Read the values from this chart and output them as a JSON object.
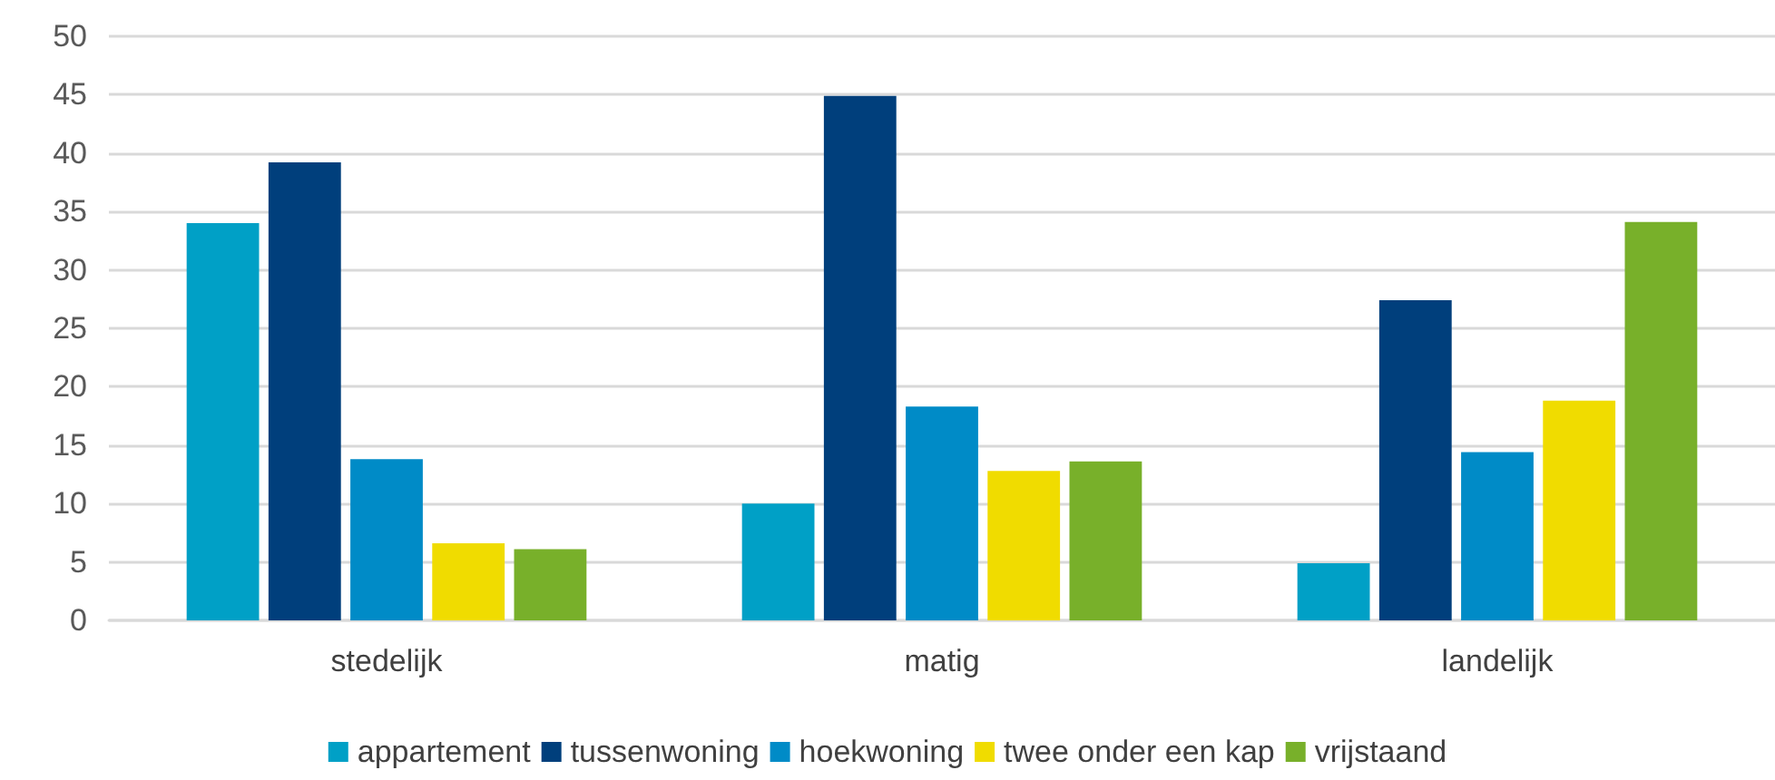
{
  "chart_data": {
    "type": "bar",
    "categories": [
      "stedelijk",
      "matig",
      "landelijk"
    ],
    "series": [
      {
        "name": "appartement",
        "color": "#00a0c6",
        "values": [
          34.0,
          10.0,
          4.9
        ]
      },
      {
        "name": "tussenwoning",
        "color": "#003f7c",
        "values": [
          39.2,
          44.9,
          27.4
        ]
      },
      {
        "name": "hoekwoning",
        "color": "#008bc7",
        "values": [
          13.8,
          18.3,
          14.4
        ]
      },
      {
        "name": "twee onder een kap",
        "color": "#f0dc00",
        "values": [
          6.6,
          12.8,
          18.8
        ]
      },
      {
        "name": "vrijstaand",
        "color": "#78b02a",
        "values": [
          6.1,
          13.6,
          34.1
        ]
      }
    ],
    "ylim": [
      0,
      50
    ],
    "yticks": [
      0,
      5,
      10,
      15,
      20,
      25,
      30,
      35,
      40,
      45,
      50
    ],
    "grid": "y",
    "legend": "bottom"
  }
}
